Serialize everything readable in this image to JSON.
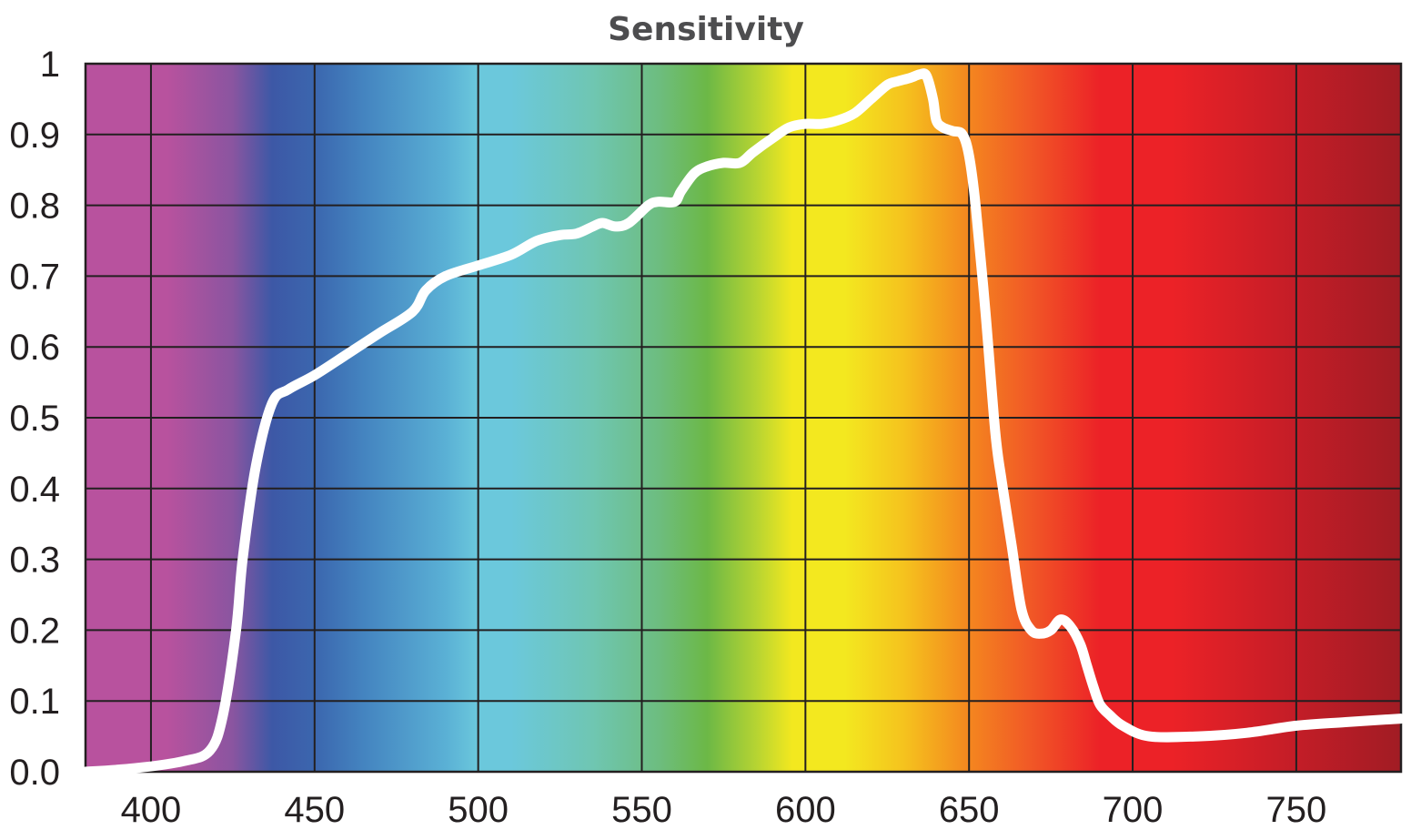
{
  "chart_data": {
    "type": "line",
    "title": "Sensitivity",
    "xlabel": "",
    "ylabel": "",
    "xlim": [
      380,
      782
    ],
    "ylim": [
      0,
      1
    ],
    "x_ticks": [
      400,
      450,
      500,
      550,
      600,
      650,
      700,
      750
    ],
    "x_tick_labels": [
      "400",
      "450",
      "500",
      "550",
      "600",
      "650",
      "700",
      "750"
    ],
    "y_ticks": [
      0,
      0.1,
      0.2,
      0.3,
      0.4,
      0.5,
      0.6,
      0.7,
      0.8,
      0.9,
      1
    ],
    "y_tick_labels": [
      "0.0",
      "0.1",
      "0.2",
      "0.3",
      "0.4",
      "0.5",
      "0.6",
      "0.7",
      "0.8",
      "0.9",
      "1"
    ],
    "grid": true,
    "background": "visible-spectrum-gradient",
    "line_color": "#ffffff",
    "spectrum_colors": [
      {
        "wl": 380,
        "color": "#b8529e"
      },
      {
        "wl": 405,
        "color": "#b8529e"
      },
      {
        "wl": 425,
        "color": "#8a55a0"
      },
      {
        "wl": 437,
        "color": "#3d58a6"
      },
      {
        "wl": 450,
        "color": "#3b66ae"
      },
      {
        "wl": 465,
        "color": "#4484c0"
      },
      {
        "wl": 490,
        "color": "#5ab0d5"
      },
      {
        "wl": 500,
        "color": "#6bc8dc"
      },
      {
        "wl": 510,
        "color": "#6bc8dc"
      },
      {
        "wl": 535,
        "color": "#6fc6b2"
      },
      {
        "wl": 555,
        "color": "#6dbd80"
      },
      {
        "wl": 570,
        "color": "#6cb846"
      },
      {
        "wl": 585,
        "color": "#b6d432"
      },
      {
        "wl": 596,
        "color": "#f3e81f"
      },
      {
        "wl": 612,
        "color": "#f3e81f"
      },
      {
        "wl": 630,
        "color": "#f5c31e"
      },
      {
        "wl": 650,
        "color": "#f4861f"
      },
      {
        "wl": 668,
        "color": "#f15a26"
      },
      {
        "wl": 690,
        "color": "#ec2227"
      },
      {
        "wl": 712,
        "color": "#ec2227"
      },
      {
        "wl": 750,
        "color": "#c31d27"
      },
      {
        "wl": 782,
        "color": "#a11c24"
      }
    ],
    "series": [
      {
        "x": [
          380,
          395,
          410,
          418,
          422,
          426,
          428,
          432,
          437,
          442,
          450,
          460,
          470,
          480,
          484,
          490,
          500,
          510,
          518,
          525,
          530,
          535,
          538,
          542,
          546,
          552,
          555,
          560,
          562,
          566,
          570,
          575,
          580,
          584,
          590,
          595,
          600,
          605,
          610,
          615,
          620,
          625,
          628,
          632,
          635,
          637,
          639,
          640,
          642,
          645,
          648,
          650,
          652,
          655,
          658,
          660,
          663,
          666,
          669,
          672,
          675,
          678,
          681,
          684,
          686,
          688,
          690,
          693,
          697,
          705,
          720,
          735,
          750,
          765,
          782
        ],
        "y": [
          0,
          0.005,
          0.015,
          0.03,
          0.08,
          0.2,
          0.3,
          0.43,
          0.52,
          0.54,
          0.56,
          0.59,
          0.62,
          0.65,
          0.68,
          0.7,
          0.715,
          0.73,
          0.75,
          0.758,
          0.76,
          0.77,
          0.775,
          0.77,
          0.775,
          0.8,
          0.805,
          0.805,
          0.82,
          0.845,
          0.855,
          0.86,
          0.86,
          0.875,
          0.895,
          0.91,
          0.915,
          0.915,
          0.92,
          0.93,
          0.95,
          0.97,
          0.975,
          0.98,
          0.985,
          0.983,
          0.95,
          0.92,
          0.91,
          0.905,
          0.9,
          0.87,
          0.8,
          0.65,
          0.48,
          0.41,
          0.32,
          0.23,
          0.2,
          0.195,
          0.2,
          0.215,
          0.205,
          0.18,
          0.15,
          0.12,
          0.095,
          0.08,
          0.065,
          0.05,
          0.05,
          0.055,
          0.065,
          0.07,
          0.075
        ]
      }
    ]
  }
}
